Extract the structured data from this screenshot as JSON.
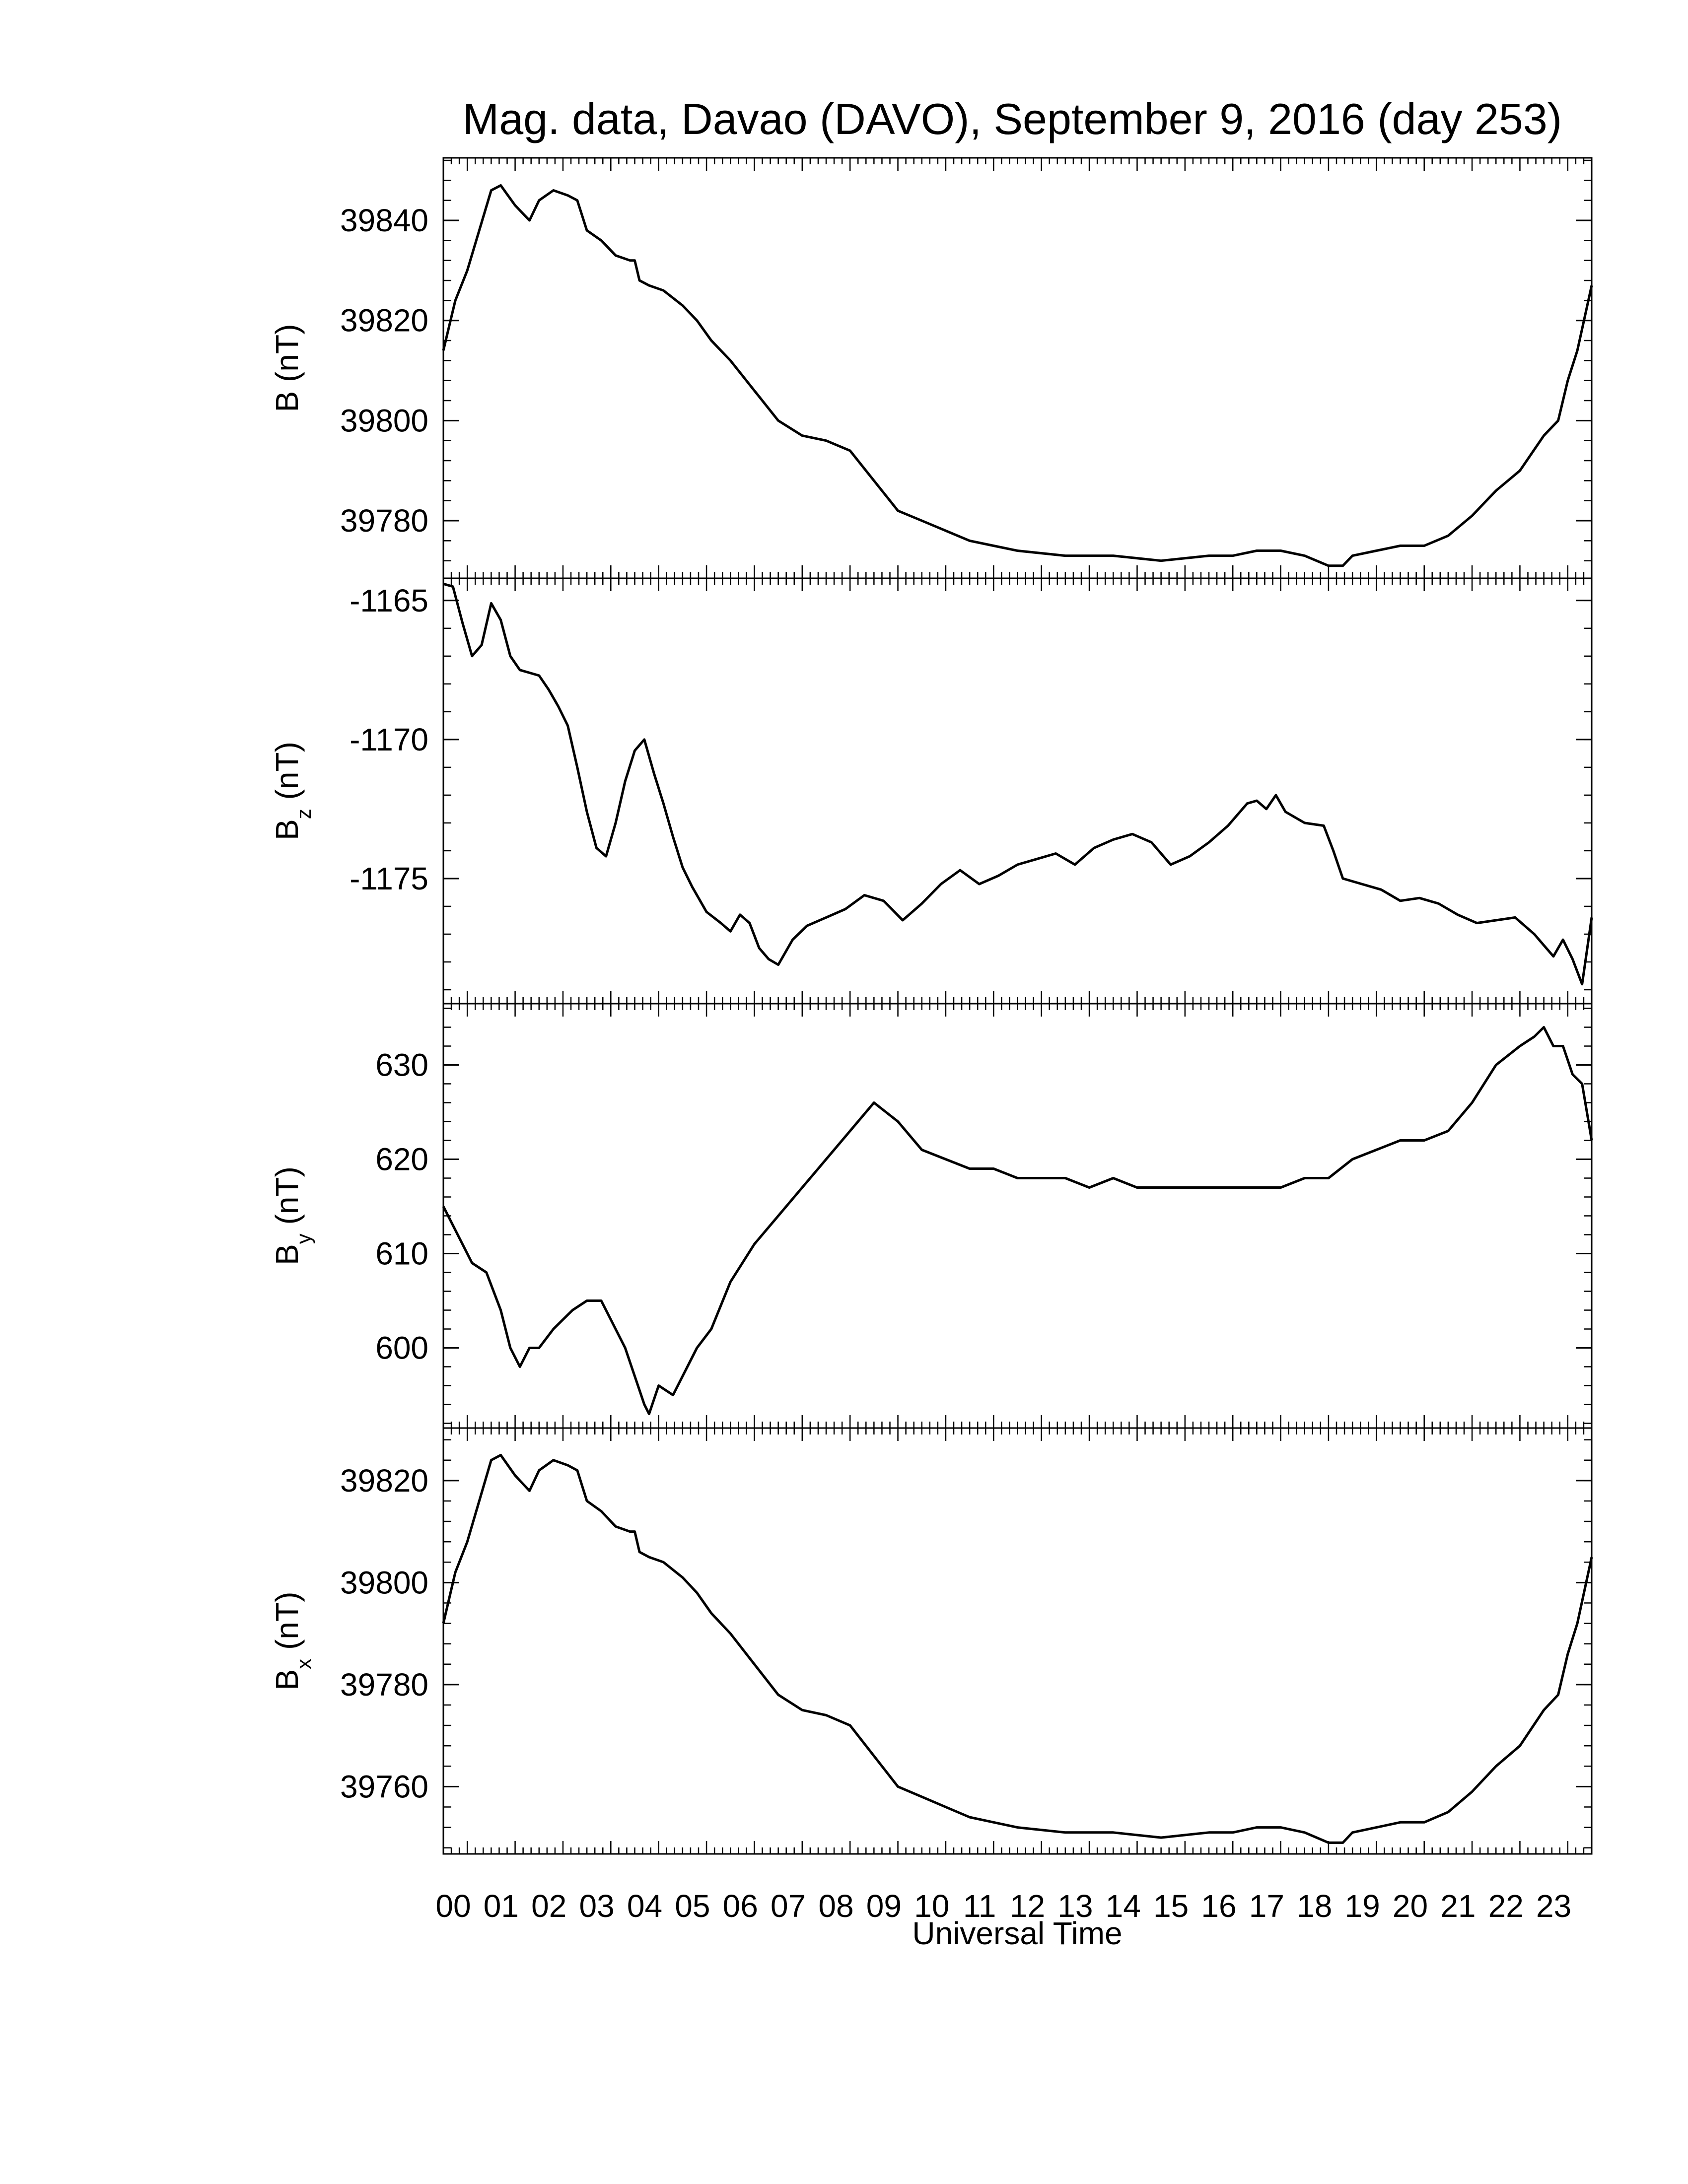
{
  "title": "Mag. data, Davao (DAVO), September 9, 2016 (day 253)",
  "xlabel": "Universal Time",
  "colors": {
    "line": "#000000",
    "axes": "#000000",
    "background": "#ffffff"
  },
  "chart_data": [
    {
      "type": "line",
      "name": "B",
      "ylabel": {
        "main": "B",
        "sub": "",
        "unit": " (nT)"
      },
      "xlim": [
        0,
        24
      ],
      "ylim": [
        39768.5,
        39852.5
      ],
      "yticks": [
        39780,
        39800,
        39820,
        39840
      ],
      "ytick_labels": [
        "39780",
        "39800",
        "39820",
        "39840"
      ],
      "x": [
        0,
        0.25,
        0.5,
        0.75,
        1.0,
        1.2,
        1.5,
        1.8,
        2.0,
        2.3,
        2.6,
        2.8,
        3.0,
        3.3,
        3.6,
        3.9,
        4.0,
        4.1,
        4.3,
        4.6,
        5.0,
        5.3,
        5.6,
        6.0,
        6.5,
        7.0,
        7.5,
        8.0,
        8.5,
        9.0,
        9.5,
        10.0,
        10.5,
        11.0,
        11.5,
        12.0,
        13.0,
        14.0,
        15.0,
        16.0,
        16.5,
        17.0,
        17.5,
        18.0,
        18.5,
        18.8,
        19.0,
        19.5,
        20.0,
        20.5,
        21.0,
        21.5,
        22.0,
        22.5,
        23.0,
        23.3,
        23.5,
        23.7,
        24.0
      ],
      "y": [
        39814,
        39824,
        39830,
        39838,
        39846,
        39847,
        39843,
        39840,
        39844,
        39846,
        39845,
        39844,
        39838,
        39836,
        39833,
        39832,
        39832,
        39828,
        39827,
        39826,
        39823,
        39820,
        39816,
        39812,
        39806,
        39800,
        39797,
        39796,
        39794,
        39788,
        39782,
        39780,
        39778,
        39776,
        39775,
        39774,
        39773,
        39773,
        39772,
        39773,
        39773,
        39774,
        39774,
        39773,
        39771,
        39771,
        39773,
        39774,
        39775,
        39775,
        39777,
        39781,
        39786,
        39790,
        39797,
        39800,
        39808,
        39814,
        39827
      ]
    },
    {
      "type": "line",
      "name": "Bz",
      "ylabel": {
        "main": "B",
        "sub": "z",
        "unit": " (nT)"
      },
      "xlim": [
        0,
        24
      ],
      "ylim": [
        -1179.5,
        -1164.2
      ],
      "yticks": [
        -1175,
        -1170,
        -1165
      ],
      "ytick_labels": [
        "-1175",
        "-1170",
        "-1165"
      ],
      "x": [
        0,
        0.2,
        0.4,
        0.6,
        0.8,
        1.0,
        1.2,
        1.4,
        1.6,
        1.8,
        2.0,
        2.2,
        2.4,
        2.6,
        2.8,
        3.0,
        3.2,
        3.4,
        3.6,
        3.8,
        4.0,
        4.2,
        4.4,
        4.6,
        4.8,
        5.0,
        5.2,
        5.5,
        5.8,
        6.0,
        6.2,
        6.4,
        6.6,
        6.8,
        7.0,
        7.3,
        7.6,
        8.0,
        8.4,
        8.8,
        9.2,
        9.6,
        10.0,
        10.4,
        10.8,
        11.2,
        11.6,
        12.0,
        12.4,
        12.8,
        13.2,
        13.6,
        14.0,
        14.4,
        14.8,
        15.2,
        15.6,
        16.0,
        16.4,
        16.8,
        17.0,
        17.2,
        17.4,
        17.6,
        18.0,
        18.4,
        18.6,
        18.8,
        19.2,
        19.6,
        20.0,
        20.4,
        20.8,
        21.2,
        21.6,
        22.0,
        22.4,
        22.8,
        23.0,
        23.2,
        23.4,
        23.6,
        23.8,
        24.0
      ],
      "y": [
        -1164.4,
        -1164.5,
        -1165.8,
        -1167.0,
        -1166.6,
        -1165.1,
        -1165.7,
        -1167.0,
        -1167.5,
        -1167.6,
        -1167.7,
        -1168.2,
        -1168.8,
        -1169.5,
        -1171.0,
        -1172.6,
        -1173.9,
        -1174.2,
        -1173.0,
        -1171.5,
        -1170.4,
        -1170.0,
        -1171.2,
        -1172.3,
        -1173.5,
        -1174.6,
        -1175.3,
        -1176.2,
        -1176.6,
        -1176.9,
        -1176.3,
        -1176.6,
        -1177.5,
        -1177.9,
        -1178.1,
        -1177.2,
        -1176.7,
        -1176.4,
        -1176.1,
        -1175.6,
        -1175.8,
        -1176.5,
        -1175.9,
        -1175.2,
        -1174.7,
        -1175.2,
        -1174.9,
        -1174.5,
        -1174.3,
        -1174.1,
        -1174.5,
        -1173.9,
        -1173.6,
        -1173.4,
        -1173.7,
        -1174.5,
        -1174.2,
        -1173.7,
        -1173.1,
        -1172.3,
        -1172.2,
        -1172.5,
        -1172.0,
        -1172.6,
        -1173.0,
        -1173.1,
        -1174.0,
        -1175.0,
        -1175.2,
        -1175.4,
        -1175.8,
        -1175.7,
        -1175.9,
        -1176.3,
        -1176.6,
        -1176.5,
        -1176.4,
        -1177.0,
        -1177.4,
        -1177.8,
        -1177.2,
        -1177.9,
        -1178.8,
        -1176.4
      ]
    },
    {
      "type": "line",
      "name": "By",
      "ylabel": {
        "main": "B",
        "sub": "y",
        "unit": " (nT)"
      },
      "xlim": [
        0,
        24
      ],
      "ylim": [
        591.5,
        636.5
      ],
      "yticks": [
        600,
        610,
        620,
        630
      ],
      "ytick_labels": [
        "600",
        "610",
        "620",
        "630"
      ],
      "x": [
        0,
        0.3,
        0.6,
        0.9,
        1.2,
        1.4,
        1.6,
        1.8,
        2.0,
        2.3,
        2.5,
        2.7,
        3.0,
        3.3,
        3.5,
        3.8,
        4.0,
        4.2,
        4.3,
        4.5,
        4.8,
        5.0,
        5.3,
        5.6,
        6.0,
        6.5,
        7.0,
        7.5,
        8.0,
        8.5,
        9.0,
        9.5,
        10.0,
        10.5,
        11.0,
        11.5,
        12.0,
        12.5,
        13.0,
        13.5,
        14.0,
        14.5,
        15.0,
        15.5,
        16.0,
        16.5,
        17.0,
        17.5,
        18.0,
        18.5,
        19.0,
        19.5,
        20.0,
        20.5,
        21.0,
        21.5,
        22.0,
        22.5,
        22.8,
        23.0,
        23.2,
        23.4,
        23.6,
        23.8,
        24.0
      ],
      "y": [
        615,
        612,
        609,
        608,
        604,
        600,
        598,
        600,
        600,
        602,
        603,
        604,
        605,
        605,
        603,
        600,
        597,
        594,
        593,
        596,
        595,
        597,
        600,
        602,
        607,
        611,
        614,
        617,
        620,
        623,
        626,
        624,
        621,
        620,
        619,
        619,
        618,
        618,
        618,
        617,
        618,
        617,
        617,
        617,
        617,
        617,
        617,
        617,
        618,
        618,
        620,
        621,
        622,
        622,
        623,
        626,
        630,
        632,
        633,
        634,
        632,
        632,
        629,
        628,
        622
      ]
    },
    {
      "type": "line",
      "name": "Bx",
      "ylabel": {
        "main": "B",
        "sub": "x",
        "unit": " (nT)"
      },
      "xlim": [
        0,
        24
      ],
      "ylim": [
        39746.8,
        39830.3
      ],
      "yticks": [
        39760,
        39780,
        39800,
        39820
      ],
      "ytick_labels": [
        "39760",
        "39780",
        "39800",
        "39820"
      ],
      "x": [
        0,
        0.25,
        0.5,
        0.75,
        1.0,
        1.2,
        1.5,
        1.8,
        2.0,
        2.3,
        2.6,
        2.8,
        3.0,
        3.3,
        3.6,
        3.9,
        4.0,
        4.1,
        4.3,
        4.6,
        5.0,
        5.3,
        5.6,
        6.0,
        6.5,
        7.0,
        7.5,
        8.0,
        8.5,
        9.0,
        9.5,
        10.0,
        10.5,
        11.0,
        11.5,
        12.0,
        13.0,
        14.0,
        15.0,
        16.0,
        16.5,
        17.0,
        17.5,
        18.0,
        18.5,
        18.8,
        19.0,
        19.5,
        20.0,
        20.5,
        21.0,
        21.5,
        22.0,
        22.5,
        23.0,
        23.3,
        23.5,
        23.7,
        24.0
      ],
      "y": [
        39792,
        39802,
        39808,
        39816,
        39824,
        39825,
        39821,
        39818,
        39822,
        39824,
        39823,
        39822,
        39816,
        39814,
        39811,
        39810,
        39810,
        39806,
        39805,
        39804,
        39801,
        39798,
        39794,
        39790,
        39784,
        39778,
        39775,
        39774,
        39772,
        39766,
        39760,
        39758,
        39756,
        39754,
        39753,
        39752,
        39751,
        39751,
        39750,
        39751,
        39751,
        39752,
        39752,
        39751,
        39749,
        39749,
        39751,
        39752,
        39753,
        39753,
        39755,
        39759,
        39764,
        39768,
        39775,
        39778,
        39786,
        39792,
        39805
      ]
    }
  ],
  "xaxis": {
    "ticks": [
      0.5,
      1.5,
      2.5,
      3.5,
      4.5,
      5.5,
      6.5,
      7.5,
      8.5,
      9.5,
      10.5,
      11.5,
      12.5,
      13.5,
      14.5,
      15.5,
      16.5,
      17.5,
      18.5,
      19.5,
      20.5,
      21.5,
      22.5,
      23.5
    ],
    "tick_labels": [
      "00",
      "01",
      "02",
      "03",
      "04",
      "05",
      "06",
      "07",
      "08",
      "09",
      "10",
      "11",
      "12",
      "13",
      "14",
      "15",
      "16",
      "17",
      "18",
      "19",
      "20",
      "21",
      "22",
      "23"
    ]
  }
}
